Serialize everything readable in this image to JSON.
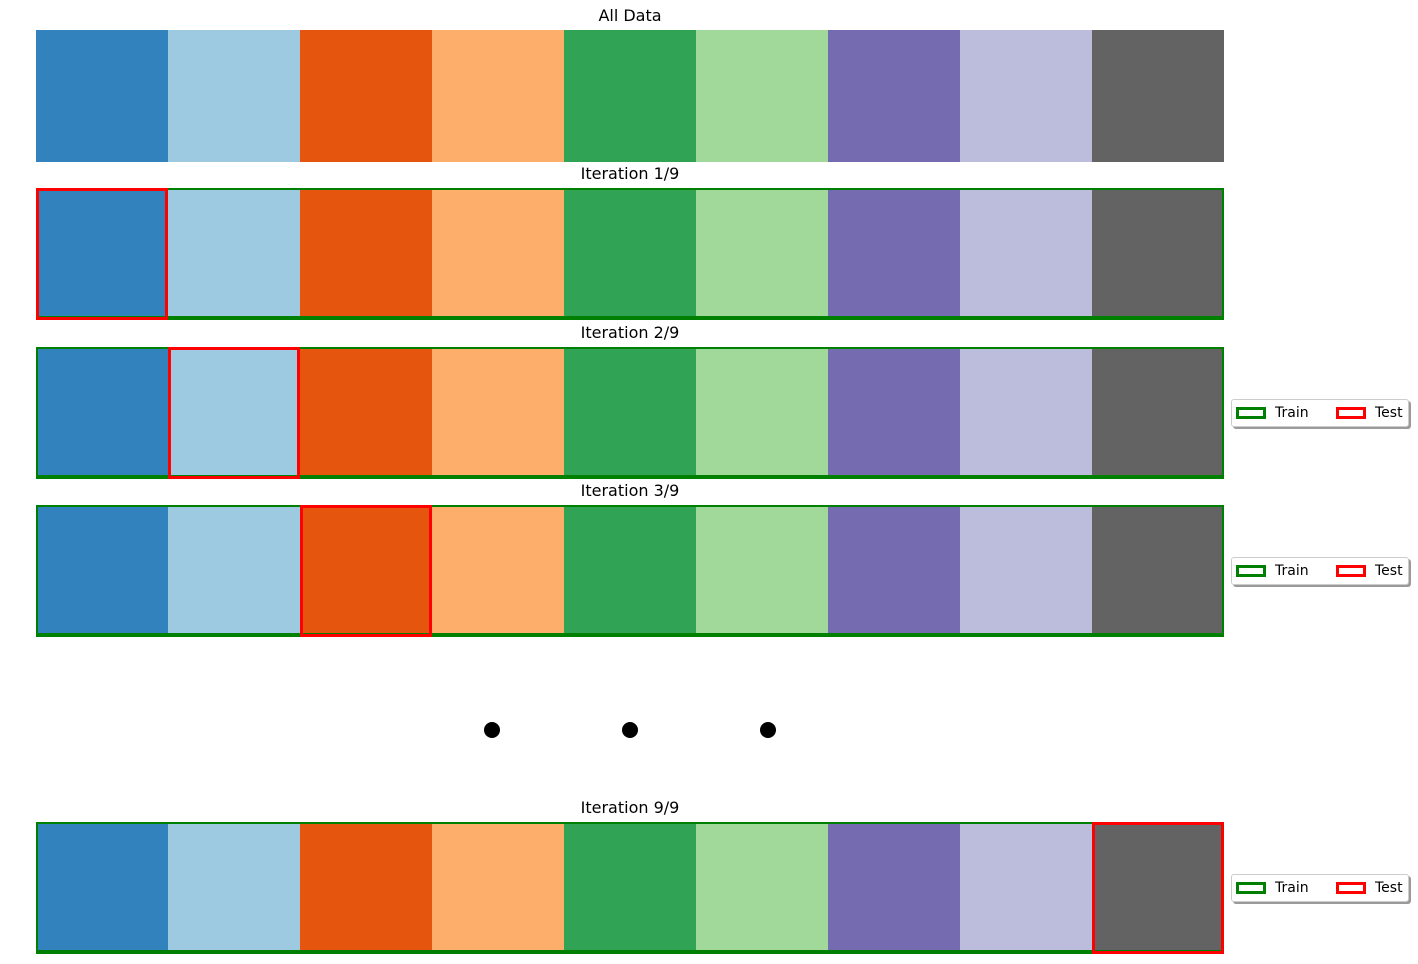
{
  "colors": {
    "blocks": [
      "#3182bd",
      "#9ecae1",
      "#e6550d",
      "#fdae6b",
      "#31a354",
      "#a1d99b",
      "#756bb1",
      "#bcbddc",
      "#636363"
    ],
    "train": "#008000",
    "test": "#ff0000",
    "ellipsis_dots": "#000000"
  },
  "rows": [
    {
      "title": "All Data",
      "test_index": null,
      "legend": false
    },
    {
      "title": "Iteration 1/9",
      "test_index": 0,
      "legend": false
    },
    {
      "title": "Iteration 2/9",
      "test_index": 1,
      "legend": true
    },
    {
      "title": "Iteration 3/9",
      "test_index": 2,
      "legend": true
    },
    {
      "title": "Iteration 9/9",
      "test_index": 8,
      "legend": true
    }
  ],
  "legend": {
    "train_label": "Train",
    "test_label": "Test"
  },
  "ellipsis": {
    "dot_count": 3,
    "after_row": 3
  }
}
